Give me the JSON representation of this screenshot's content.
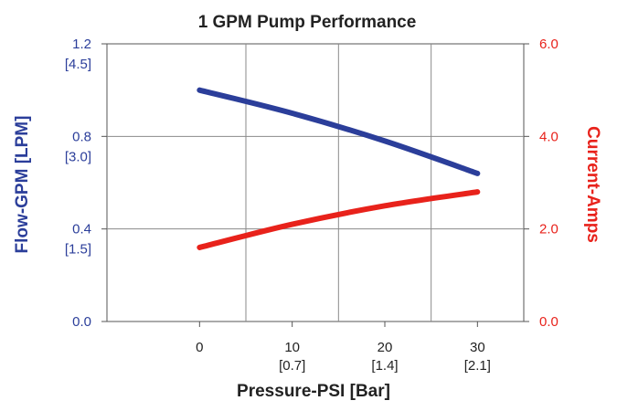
{
  "chart_data": {
    "type": "line",
    "title": "1 GPM Pump Performance",
    "xlabel": "Pressure-PSI [Bar]",
    "ylabel_left": "Flow-GPM [LPM]",
    "ylabel_right": "Current-Amps",
    "xlim": [
      -10,
      35
    ],
    "ylim_left": [
      0,
      1.2
    ],
    "ylim_right": [
      0,
      6.0
    ],
    "grid": true,
    "x": [
      0,
      10,
      20,
      30
    ],
    "x_ticks": [
      {
        "value": 0,
        "label": "0",
        "sublabel": ""
      },
      {
        "value": 10,
        "label": "10",
        "sublabel": "[0.7]"
      },
      {
        "value": 20,
        "label": "20",
        "sublabel": "[1.4]"
      },
      {
        "value": 30,
        "label": "30",
        "sublabel": "[2.1]"
      }
    ],
    "x_gridlines": [
      5,
      15,
      25
    ],
    "y_ticks_left": [
      {
        "value": 0.0,
        "label": "0.0",
        "sublabel": ""
      },
      {
        "value": 0.4,
        "label": "0.4",
        "sublabel": "[1.5]"
      },
      {
        "value": 0.8,
        "label": "0.8",
        "sublabel": "[3.0]"
      },
      {
        "value": 1.2,
        "label": "1.2",
        "sublabel": "[4.5]"
      }
    ],
    "y_ticks_right": [
      {
        "value": 0.0,
        "label": "0.0"
      },
      {
        "value": 2.0,
        "label": "2.0"
      },
      {
        "value": 4.0,
        "label": "4.0"
      },
      {
        "value": 6.0,
        "label": "6.0"
      }
    ],
    "series": [
      {
        "name": "Flow-GPM",
        "axis": "left",
        "color": "#2b3e9a",
        "values": [
          1.0,
          0.9,
          0.78,
          0.64
        ]
      },
      {
        "name": "Current-Amps",
        "axis": "right",
        "color": "#e8221b",
        "values": [
          1.6,
          2.1,
          2.5,
          2.8
        ]
      }
    ],
    "left_axis_color": "#2b3e9a",
    "right_axis_color": "#e8221b"
  }
}
